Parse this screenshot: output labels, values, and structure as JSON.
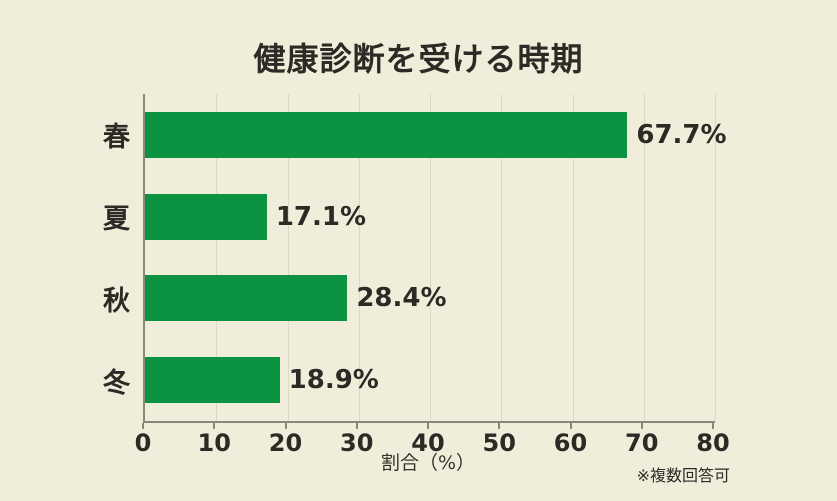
{
  "footnote": "※複数回答可",
  "colors": {
    "background": "#f0eeda",
    "bar": "#0b9342",
    "axis": "#8a887a",
    "gridline": "#dcd8c3",
    "text": "#2b2a25"
  },
  "chart_data": {
    "type": "bar",
    "orientation": "horizontal",
    "title": "健康診断を受ける時期",
    "categories": [
      "春",
      "夏",
      "秋",
      "冬"
    ],
    "values": [
      67.7,
      17.1,
      28.4,
      18.9
    ],
    "value_labels": [
      "67.7%",
      "17.1%",
      "28.4%",
      "18.9%"
    ],
    "xlabel": "割合（%）",
    "xlim": [
      0,
      80
    ],
    "xticks": [
      0,
      10,
      20,
      30,
      40,
      50,
      60,
      70,
      80
    ],
    "grid": true,
    "legend": "none"
  }
}
